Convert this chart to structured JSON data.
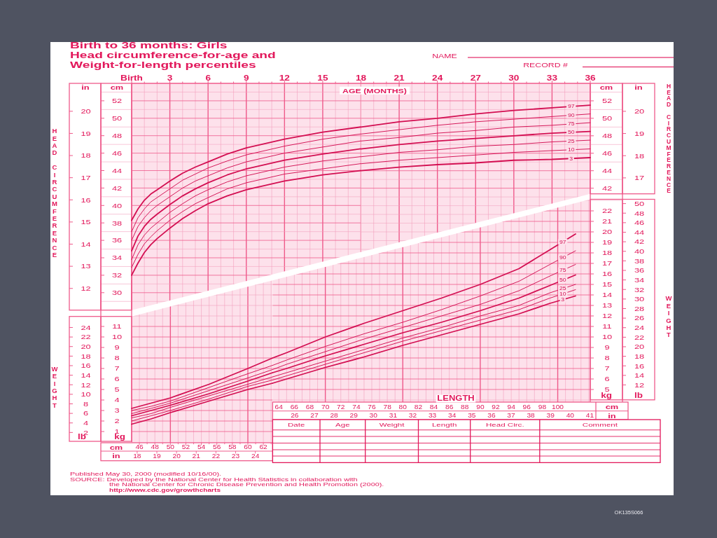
{
  "chart_data": [
    {
      "type": "line",
      "title": "Birth to 36 months: Girls",
      "subtitle": "Head circumference-for-age and Weight-for-length percentiles",
      "ylabel": "cm",
      "y2label": "in",
      "annotations": [
        "HEAD CIRCUMFERENCE"
      ],
      "x": [
        0,
        0.5,
        1,
        1.5,
        2,
        3,
        4,
        5,
        6,
        7.5,
        9,
        10.5,
        12,
        15,
        18
      ],
      "series": [
        {
          "color": "#d30f52",
          "values": [
            38.3,
            39.6,
            40.6,
            41.3,
            41.8,
            42.8,
            43.7,
            44.4,
            45.0,
            45.9,
            46.6,
            47.1,
            47.6,
            48.4,
            49.0
          ]
        },
        {
          "color": "#d30f52",
          "values": [
            37.0,
            38.6,
            39.6,
            40.4,
            40.9,
            41.9,
            42.9,
            43.6,
            44.3,
            45.1,
            45.8,
            46.3,
            46.8,
            47.6,
            48.2
          ]
        },
        {
          "color": "#d30f52",
          "values": [
            36.0,
            37.6,
            38.6,
            39.4,
            40.0,
            41.0,
            42.0,
            42.8,
            43.4,
            44.3,
            45.0,
            45.5,
            46.0,
            46.7,
            47.4
          ]
        },
        {
          "color": "#d30f52",
          "values": [
            34.8,
            36.5,
            37.6,
            38.4,
            39.0,
            40.1,
            41.1,
            41.9,
            42.6,
            43.5,
            44.2,
            44.7,
            45.2,
            45.9,
            46.5
          ]
        },
        {
          "color": "#d30f52",
          "values": [
            33.8,
            35.5,
            36.6,
            37.4,
            38.0,
            39.2,
            40.2,
            41.1,
            41.8,
            42.7,
            43.4,
            43.9,
            44.4,
            45.1,
            45.6
          ]
        },
        {
          "color": "#d30f52",
          "values": [
            32.9,
            34.4,
            35.6,
            36.4,
            37.1,
            38.3,
            39.3,
            40.2,
            40.9,
            41.9,
            42.6,
            43.1,
            43.6,
            44.2,
            44.8
          ]
        },
        {
          "color": "#d30f52",
          "values": [
            32.0,
            33.4,
            34.6,
            35.5,
            36.2,
            37.4,
            38.5,
            39.4,
            40.2,
            41.1,
            41.8,
            42.3,
            42.8,
            43.5,
            44.0
          ]
        }
      ],
      "xlim": [
        0,
        18
      ],
      "xticks": [
        {
          "value": 0,
          "label": "Birth"
        },
        {
          "value": 1,
          "label": null
        },
        {
          "value": 2,
          "label": null
        },
        3,
        {
          "value": 4,
          "label": null
        },
        {
          "value": 5,
          "label": null
        },
        6,
        {
          "value": 7,
          "label": null
        },
        {
          "value": 8,
          "label": null
        },
        9,
        {
          "value": 10,
          "label": null
        },
        {
          "value": 11,
          "label": null
        },
        12,
        {
          "value": 13,
          "label": null
        },
        {
          "value": 14,
          "label": null
        },
        15,
        {
          "value": 16,
          "label": null
        },
        {
          "value": 17,
          "label": null
        },
        18
      ],
      "ylim": [
        28,
        54
      ],
      "yticks": [
        {
          "value": 29,
          "label": null
        },
        30,
        {
          "value": 31,
          "label": null
        },
        32,
        {
          "value": 33,
          "label": null
        },
        34,
        {
          "value": 35,
          "label": null
        },
        36,
        {
          "value": 37,
          "label": null
        },
        38,
        {
          "value": 39,
          "label": null
        },
        40,
        {
          "value": 41,
          "label": null
        },
        42,
        {
          "value": 43,
          "label": null
        },
        44,
        {
          "value": 45,
          "label": null
        },
        46,
        {
          "value": 47,
          "label": null
        },
        48,
        {
          "value": 49,
          "label": null
        },
        50,
        {
          "value": 51,
          "label": null
        },
        52,
        {
          "value": 53,
          "label": null
        }
      ],
      "y2lim": [
        11.02,
        21.26
      ],
      "y2ticks": [
        12,
        13,
        14,
        15,
        16,
        17,
        18,
        19,
        20
      ],
      "grid": true,
      "line_style": "solid"
    },
    {
      "type": "line",
      "xlabel": "AGE (MONTHS)",
      "ylabel": "cm",
      "y2label": "in",
      "annotations": [
        "HEAD CIRCUMFERENCE",
        "NAME",
        "RECORD #"
      ],
      "x": [
        18,
        21,
        24,
        27,
        30,
        33,
        36
      ],
      "series": [
        {
          "name": "97",
          "color": "#d30f52",
          "values": [
            49.0,
            49.6,
            50.0,
            50.5,
            50.9,
            51.2,
            51.5
          ]
        },
        {
          "name": "90",
          "color": "#d30f52",
          "values": [
            48.2,
            48.7,
            49.2,
            49.6,
            49.9,
            50.2,
            50.5
          ]
        },
        {
          "name": "75",
          "color": "#d30f52",
          "values": [
            47.4,
            47.8,
            48.3,
            48.6,
            49.0,
            49.2,
            49.5
          ]
        },
        {
          "name": "50",
          "color": "#d30f52",
          "values": [
            46.5,
            47.0,
            47.4,
            47.7,
            48.0,
            48.3,
            48.5
          ]
        },
        {
          "name": "25",
          "color": "#d30f52",
          "values": [
            45.6,
            46.1,
            46.4,
            46.8,
            47.0,
            47.3,
            47.5
          ]
        },
        {
          "name": "10",
          "color": "#d30f52",
          "values": [
            44.8,
            45.2,
            45.5,
            45.8,
            46.1,
            46.3,
            46.5
          ]
        },
        {
          "name": "3",
          "color": "#d30f52",
          "values": [
            44.0,
            44.4,
            44.7,
            44.9,
            45.2,
            45.3,
            45.5
          ]
        }
      ],
      "xlim": [
        18,
        36
      ],
      "xticks": [
        {
          "value": 19,
          "label": null
        },
        {
          "value": 20,
          "label": null
        },
        21,
        {
          "value": 22,
          "label": null
        },
        {
          "value": 23,
          "label": null
        },
        24,
        {
          "value": 25,
          "label": null
        },
        {
          "value": 26,
          "label": null
        },
        27,
        {
          "value": 28,
          "label": null
        },
        {
          "value": 29,
          "label": null
        },
        30,
        {
          "value": 31,
          "label": null
        },
        {
          "value": 32,
          "label": null
        },
        33,
        {
          "value": 34,
          "label": null
        },
        {
          "value": 35,
          "label": null
        },
        36
      ],
      "ylim": [
        34.7,
        54
      ],
      "yticks": [
        {
          "value": 35,
          "label": null
        },
        {
          "value": 36,
          "label": null
        },
        {
          "value": 37,
          "label": null
        },
        {
          "value": 38,
          "label": null
        },
        {
          "value": 39,
          "label": null
        },
        {
          "value": 40,
          "label": null
        },
        {
          "value": 41,
          "label": null
        },
        42,
        {
          "value": 43,
          "label": null
        },
        44,
        {
          "value": 45,
          "label": null
        },
        46,
        {
          "value": 47,
          "label": null
        },
        48,
        {
          "value": 49,
          "label": null
        },
        50,
        {
          "value": 51,
          "label": null
        },
        52,
        {
          "value": 53,
          "label": null
        }
      ],
      "y2lim": [
        13.66,
        21.26
      ],
      "y2ticks": [
        17,
        18,
        19,
        20
      ],
      "grid": true,
      "line_style": "solid"
    },
    {
      "type": "line",
      "ylabel": "kg",
      "y2label": "lb",
      "annotations": [
        "WEIGHT",
        "cm",
        "in",
        "Published May 30, 2000 (modified 10/16/00).",
        "SOURCE: Developed by the National Center for Health Statistics in collaboration with",
        "the National Center for Chronic Disease Prevention and Health Promotion (2000).",
        "http://www.cdc.gov/growthcharts"
      ],
      "x": [
        45,
        47.5,
        50,
        55,
        60,
        63.2
      ],
      "series": [
        {
          "color": "#d30f52",
          "values": [
            3.2,
            3.7,
            4.2,
            5.5,
            7.0,
            8.0
          ]
        },
        {
          "color": "#d30f52",
          "values": [
            3.0,
            3.4,
            3.9,
            5.2,
            6.5,
            7.3
          ]
        },
        {
          "color": "#d30f52",
          "values": [
            2.7,
            3.2,
            3.7,
            4.9,
            6.1,
            6.9
          ]
        },
        {
          "color": "#d30f52",
          "values": [
            2.5,
            3.0,
            3.5,
            4.6,
            5.8,
            6.6
          ]
        },
        {
          "color": "#d30f52",
          "values": [
            2.3,
            2.7,
            3.3,
            4.4,
            5.5,
            6.2
          ]
        },
        {
          "color": "#d30f52",
          "values": [
            2.0,
            2.5,
            3.0,
            4.1,
            5.3,
            5.9
          ]
        },
        {
          "color": "#d30f52",
          "values": [
            1.7,
            2.2,
            2.8,
            3.9,
            5.0,
            5.6
          ]
        }
      ],
      "xlim": [
        45,
        63.2
      ],
      "xticks": [
        {
          "value": 45,
          "label": null
        },
        46,
        {
          "value": 47,
          "label": null
        },
        48,
        {
          "value": 49,
          "label": null
        },
        50,
        {
          "value": 51,
          "label": null
        },
        52,
        {
          "value": 53,
          "label": null
        },
        54,
        {
          "value": 55,
          "label": null
        },
        56,
        {
          "value": 57,
          "label": null
        },
        58,
        {
          "value": 59,
          "label": null
        },
        60,
        {
          "value": 61,
          "label": null
        },
        62,
        {
          "value": 63,
          "label": null
        }
      ],
      "x2lim": [
        17.72,
        24.88
      ],
      "x2ticks": [
        18,
        19,
        20,
        21,
        22,
        23,
        24
      ],
      "ylim": [
        0,
        15.4
      ],
      "yticks": [
        1,
        2,
        3,
        4,
        5,
        6,
        7,
        8,
        9,
        10,
        11,
        {
          "value": 12,
          "label": null
        },
        {
          "value": 13,
          "label": null
        },
        {
          "value": 14,
          "label": null
        },
        {
          "value": 15,
          "label": null
        }
      ],
      "y2lim": [
        0,
        33.9
      ],
      "y2ticks": [
        2,
        4,
        6,
        8,
        10,
        12,
        14,
        16,
        18,
        20,
        22,
        24
      ],
      "grid": true,
      "line_style": "solid"
    },
    {
      "type": "line",
      "xlabel": "LENGTH",
      "ylabel": "kg",
      "y2label": "lb",
      "annotations": [
        "WEIGHT",
        "cm",
        "in",
        "Date",
        "Age",
        "Weight",
        "Length",
        "Head Circ.",
        "Comment",
        "OK135S066"
      ],
      "x": [
        63.2,
        65,
        70,
        75,
        80,
        85,
        90,
        95,
        99,
        102.3
      ],
      "series": [
        {
          "name": "97",
          "color": "#d30f52",
          "values": [
            8.0,
            8.5,
            10.0,
            11.3,
            12.5,
            13.7,
            15.0,
            16.5,
            18.3,
            19.8
          ]
        },
        {
          "name": "90",
          "color": "#d30f52",
          "values": [
            7.3,
            7.8,
            9.1,
            10.3,
            11.4,
            12.6,
            13.9,
            15.3,
            16.9,
            18.2
          ]
        },
        {
          "name": "75",
          "color": "#d30f52",
          "values": [
            6.9,
            7.4,
            8.6,
            9.8,
            10.9,
            12.0,
            13.1,
            14.4,
            15.8,
            16.9
          ]
        },
        {
          "name": "50",
          "color": "#d30f52",
          "values": [
            6.6,
            7.0,
            8.2,
            9.3,
            10.4,
            11.4,
            12.5,
            13.7,
            14.9,
            15.9
          ]
        },
        {
          "name": "25",
          "color": "#d30f52",
          "values": [
            6.2,
            6.6,
            7.7,
            8.8,
            9.9,
            10.9,
            12.0,
            13.0,
            14.2,
            15.0
          ]
        },
        {
          "name": "10",
          "color": "#d30f52",
          "values": [
            5.9,
            6.3,
            7.4,
            8.5,
            9.6,
            10.6,
            11.6,
            12.6,
            13.7,
            14.5
          ]
        },
        {
          "name": "3",
          "color": "#d30f52",
          "values": [
            5.6,
            6.0,
            7.1,
            8.1,
            9.2,
            10.2,
            11.2,
            12.2,
            13.2,
            13.9
          ]
        }
      ],
      "xlim": [
        63.2,
        104.2
      ],
      "xticks": [
        64,
        {
          "value": 65,
          "label": null
        },
        66,
        {
          "value": 67,
          "label": null
        },
        68,
        {
          "value": 69,
          "label": null
        },
        70,
        {
          "value": 71,
          "label": null
        },
        72,
        {
          "value": 73,
          "label": null
        },
        74,
        {
          "value": 75,
          "label": null
        },
        76,
        {
          "value": 77,
          "label": null
        },
        78,
        {
          "value": 79,
          "label": null
        },
        80,
        {
          "value": 81,
          "label": null
        },
        82,
        {
          "value": 83,
          "label": null
        },
        84,
        {
          "value": 85,
          "label": null
        },
        86,
        {
          "value": 87,
          "label": null
        },
        88,
        {
          "value": 89,
          "label": null
        },
        90,
        {
          "value": 91,
          "label": null
        },
        92,
        {
          "value": 93,
          "label": null
        },
        94,
        {
          "value": 95,
          "label": null
        },
        96,
        {
          "value": 97,
          "label": null
        },
        98,
        {
          "value": 99,
          "label": null
        },
        100,
        {
          "value": 101,
          "label": null
        },
        {
          "value": 102,
          "label": null
        },
        {
          "value": 103,
          "label": null
        },
        {
          "value": 104,
          "label": null
        }
      ],
      "x2lim": [
        24.88,
        41.02
      ],
      "x2ticks": [
        26,
        27,
        28,
        29,
        30,
        31,
        32,
        33,
        34,
        35,
        36,
        37,
        38,
        39,
        40,
        41
      ],
      "ylim": [
        3.8,
        23.1
      ],
      "yticks": [
        {
          "value": 4,
          "label": null
        },
        5,
        6,
        7,
        8,
        9,
        10,
        11,
        12,
        13,
        14,
        15,
        16,
        17,
        18,
        19,
        20,
        21,
        22,
        {
          "value": 23,
          "label": null
        }
      ],
      "y2lim": [
        8.4,
        50.9
      ],
      "y2ticks": [
        12,
        14,
        16,
        18,
        20,
        22,
        24,
        26,
        28,
        30,
        32,
        34,
        36,
        38,
        40,
        42,
        44,
        46,
        48,
        50
      ],
      "grid": true,
      "line_style": "solid"
    }
  ]
}
